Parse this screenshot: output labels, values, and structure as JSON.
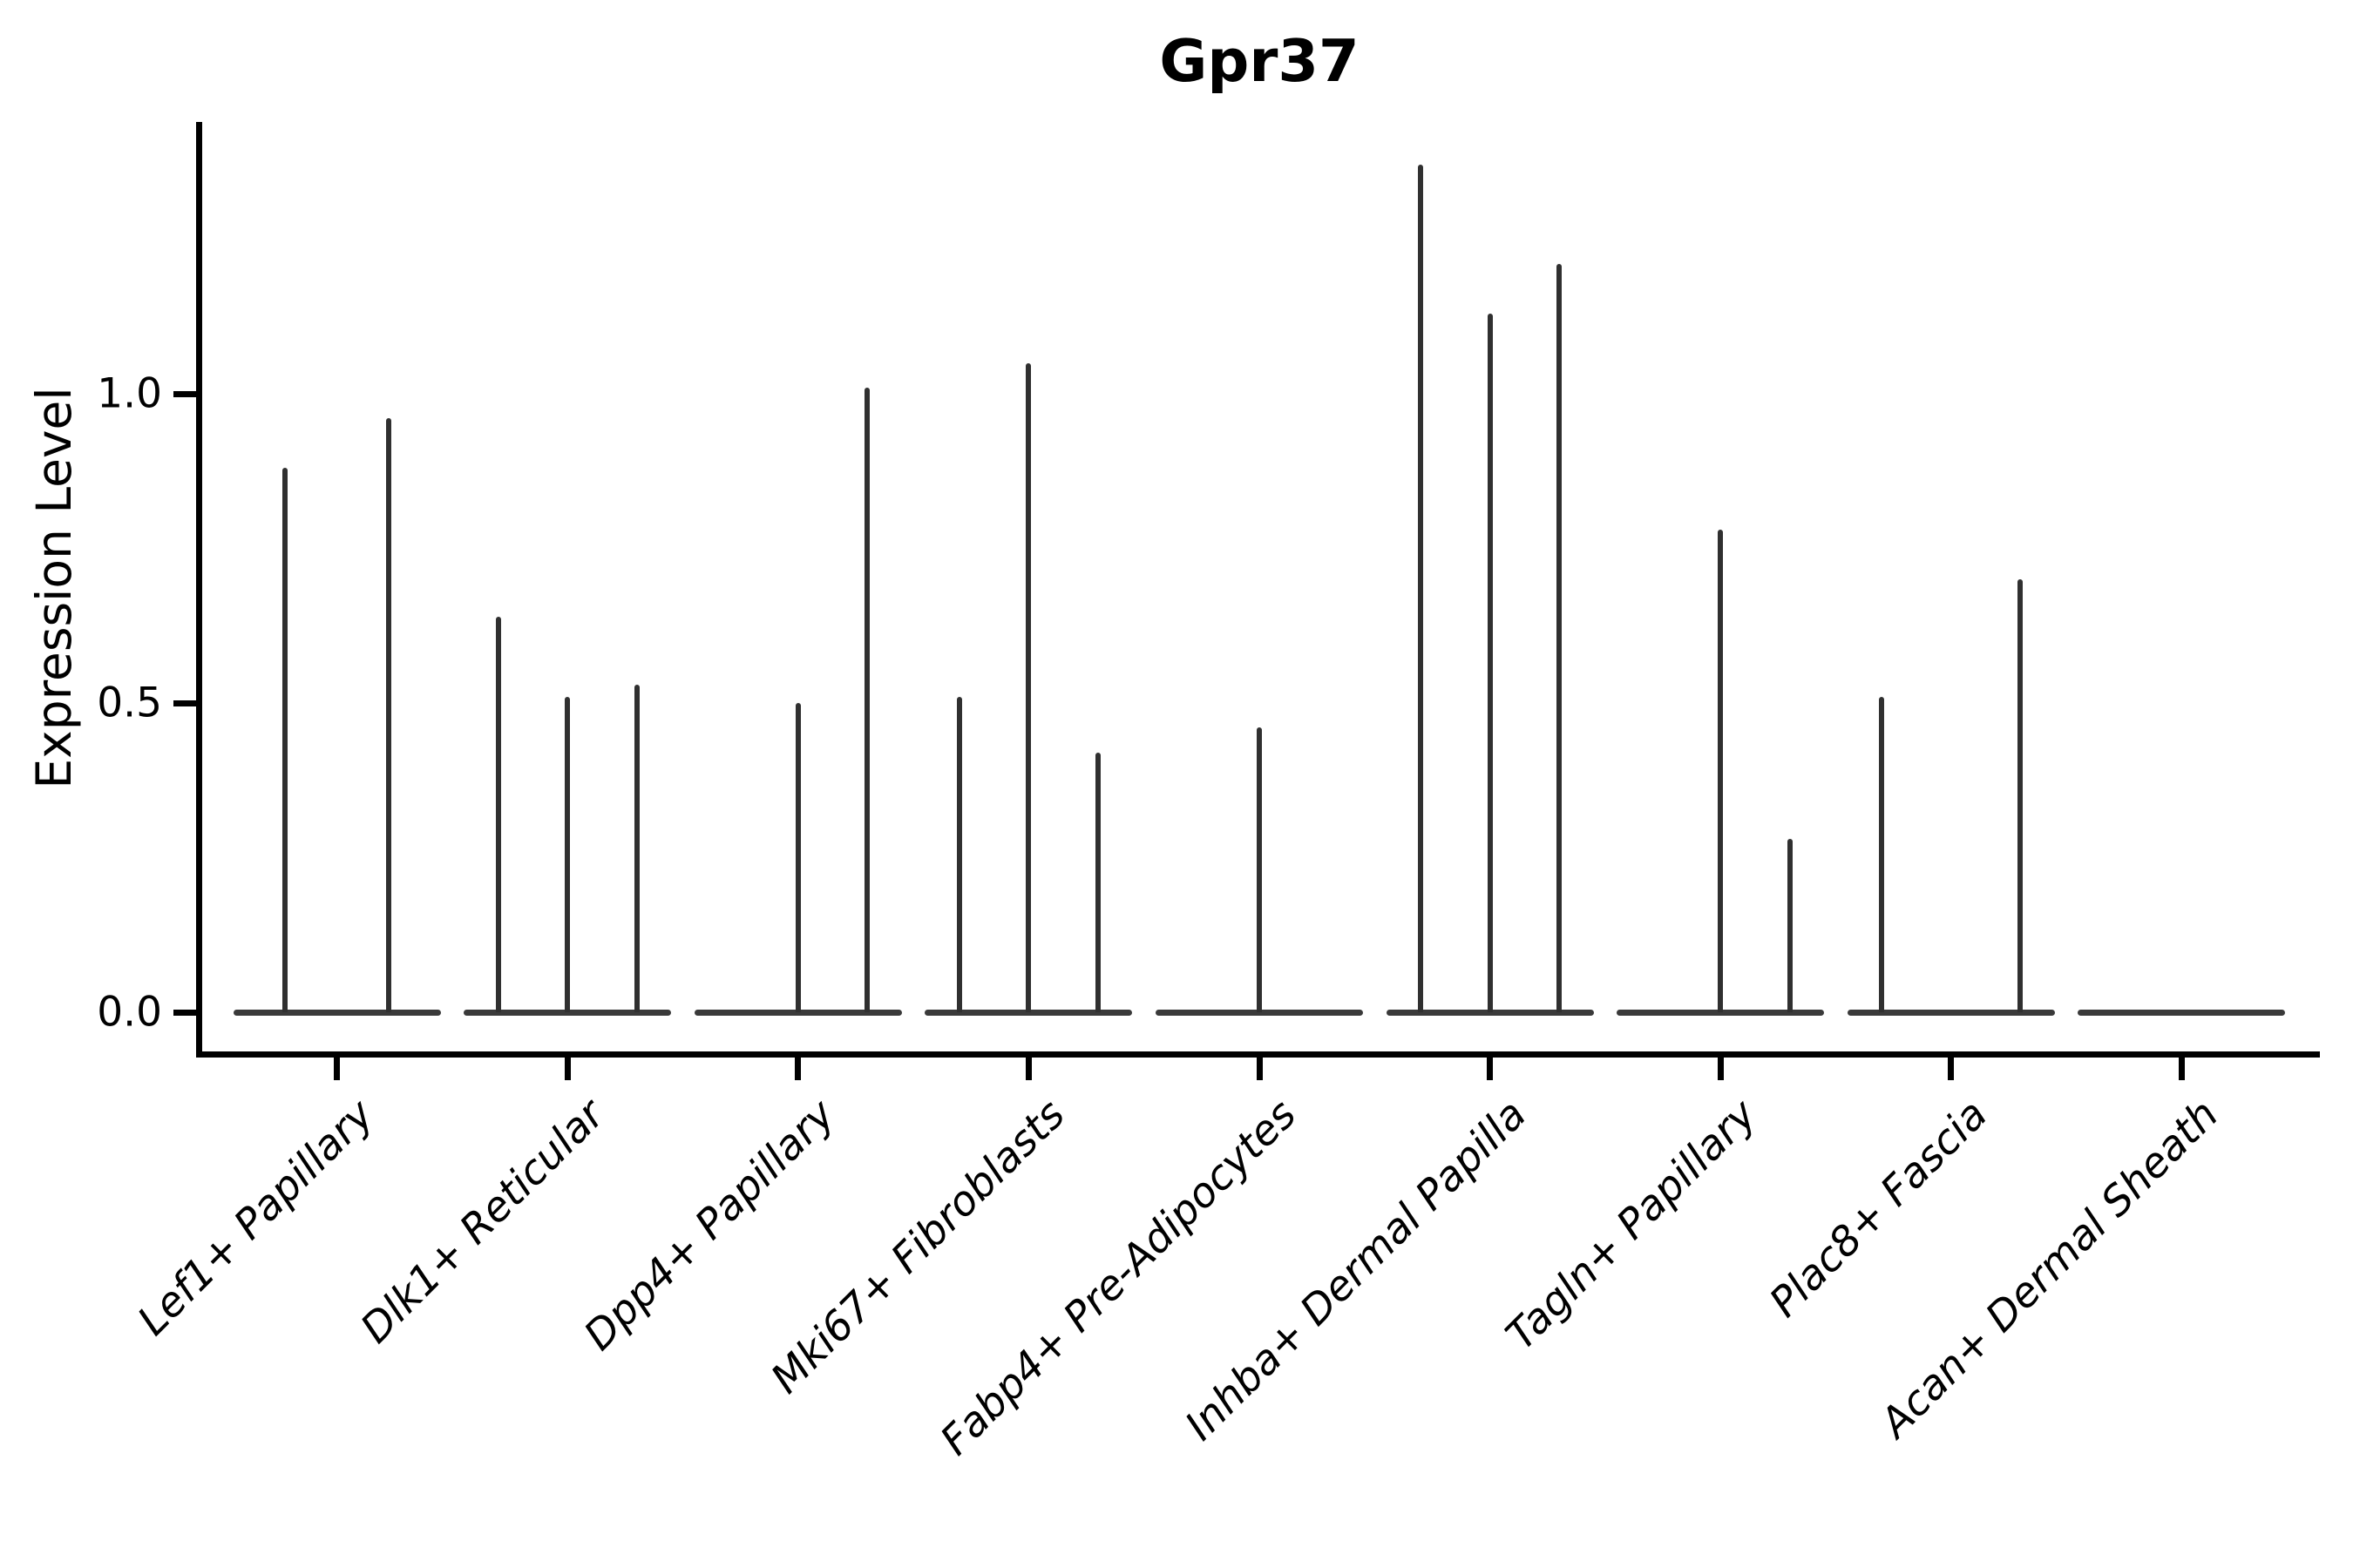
{
  "title": "Gpr37",
  "axes": {
    "y_label": "Expression Level",
    "x_label": ""
  },
  "colors": {
    "background": "#ffffff",
    "axis": "#000000",
    "text": "#000000",
    "violin_spike": "#303030",
    "violin_base": "#3a3a3a"
  },
  "chart_data": {
    "type": "violin",
    "title": "Gpr37",
    "xlabel": "",
    "ylabel": "Expression Level",
    "ylim": [
      -0.07,
      1.44
    ],
    "yticks": [
      0.0,
      0.5,
      1.0
    ],
    "ytick_labels": [
      "0.0",
      "0.5",
      "1.0"
    ],
    "grid": false,
    "legend": false,
    "x_tick_rotation": 45,
    "categories": [
      "Lef1+ Papillary",
      "Dlk1+ Reticular",
      "Dpp4+ Papillary",
      "Mki67+ Fibroblasts",
      "Fabp4+ Pre-Adipocytes",
      "Inhba+ Dermal Papilla",
      "Tagln+ Papillary",
      "Plac8+ Fascia",
      "Acan+ Dermal Sheath"
    ],
    "series_note": "Seurat-style violin plot; nearly all density mass at 0 (wide flat base), thin spikes reach the maximum expression value of each sub-violin. offset = horizontal dodge position in category-width units.",
    "groups": [
      {
        "category": "Lef1+ Papillary",
        "violins": [
          {
            "offset": -0.225,
            "max": 0.88
          },
          {
            "offset": 0.225,
            "max": 0.96
          }
        ]
      },
      {
        "category": "Dlk1+ Reticular",
        "violins": [
          {
            "offset": -0.3,
            "max": 0.64
          },
          {
            "offset": 0.0,
            "max": 0.51
          },
          {
            "offset": 0.3,
            "max": 0.53
          }
        ]
      },
      {
        "category": "Dpp4+ Papillary",
        "violins": [
          {
            "offset": 0.0,
            "max": 0.5
          },
          {
            "offset": 0.3,
            "max": 1.01
          }
        ]
      },
      {
        "category": "Mki67+ Fibroblasts",
        "violins": [
          {
            "offset": -0.3,
            "max": 0.51
          },
          {
            "offset": 0.0,
            "max": 1.05
          },
          {
            "offset": 0.3,
            "max": 0.42
          }
        ]
      },
      {
        "category": "Fabp4+ Pre-Adipocytes",
        "violins": [
          {
            "offset": 0.0,
            "max": 0.46
          }
        ]
      },
      {
        "category": "Inhba+ Dermal Papilla",
        "violins": [
          {
            "offset": -0.3,
            "max": 1.37
          },
          {
            "offset": 0.0,
            "max": 1.13
          },
          {
            "offset": 0.3,
            "max": 1.21
          }
        ]
      },
      {
        "category": "Tagln+ Papillary",
        "violins": [
          {
            "offset": 0.0,
            "max": 0.78
          },
          {
            "offset": 0.3,
            "max": 0.28
          }
        ]
      },
      {
        "category": "Plac8+ Fascia",
        "violins": [
          {
            "offset": -0.3,
            "max": 0.51
          },
          {
            "offset": 0.3,
            "max": 0.7
          }
        ]
      },
      {
        "category": "Acan+ Dermal Sheath",
        "violins": []
      }
    ]
  }
}
